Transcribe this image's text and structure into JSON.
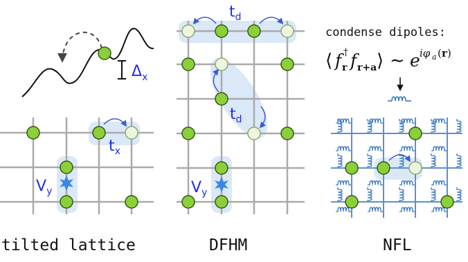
{
  "panels": {
    "tilted": {
      "caption": "tilted lattice",
      "delta_label": "Δ",
      "delta_sub": "x",
      "hop_label": "t",
      "hop_sub": "x",
      "pot_label": "V",
      "pot_sub": "y"
    },
    "dfhm": {
      "caption": "DFHM",
      "hop_label": "t",
      "hop_sub": "d",
      "pot_label": "V",
      "pot_sub": "y"
    },
    "nfl": {
      "caption": "NFL",
      "condense_text": "condense dipoles:"
    }
  },
  "colors": {
    "site_fill": "#8ccf3a",
    "site_empty": "#eef5df",
    "site_stroke": "#2f5a16",
    "grid": "#aaaaaa",
    "accent": "#1f2fe0",
    "highlight": "#dbe8f8",
    "spring": "#3a78c8",
    "nfl_grid": "#5b8fd0"
  }
}
